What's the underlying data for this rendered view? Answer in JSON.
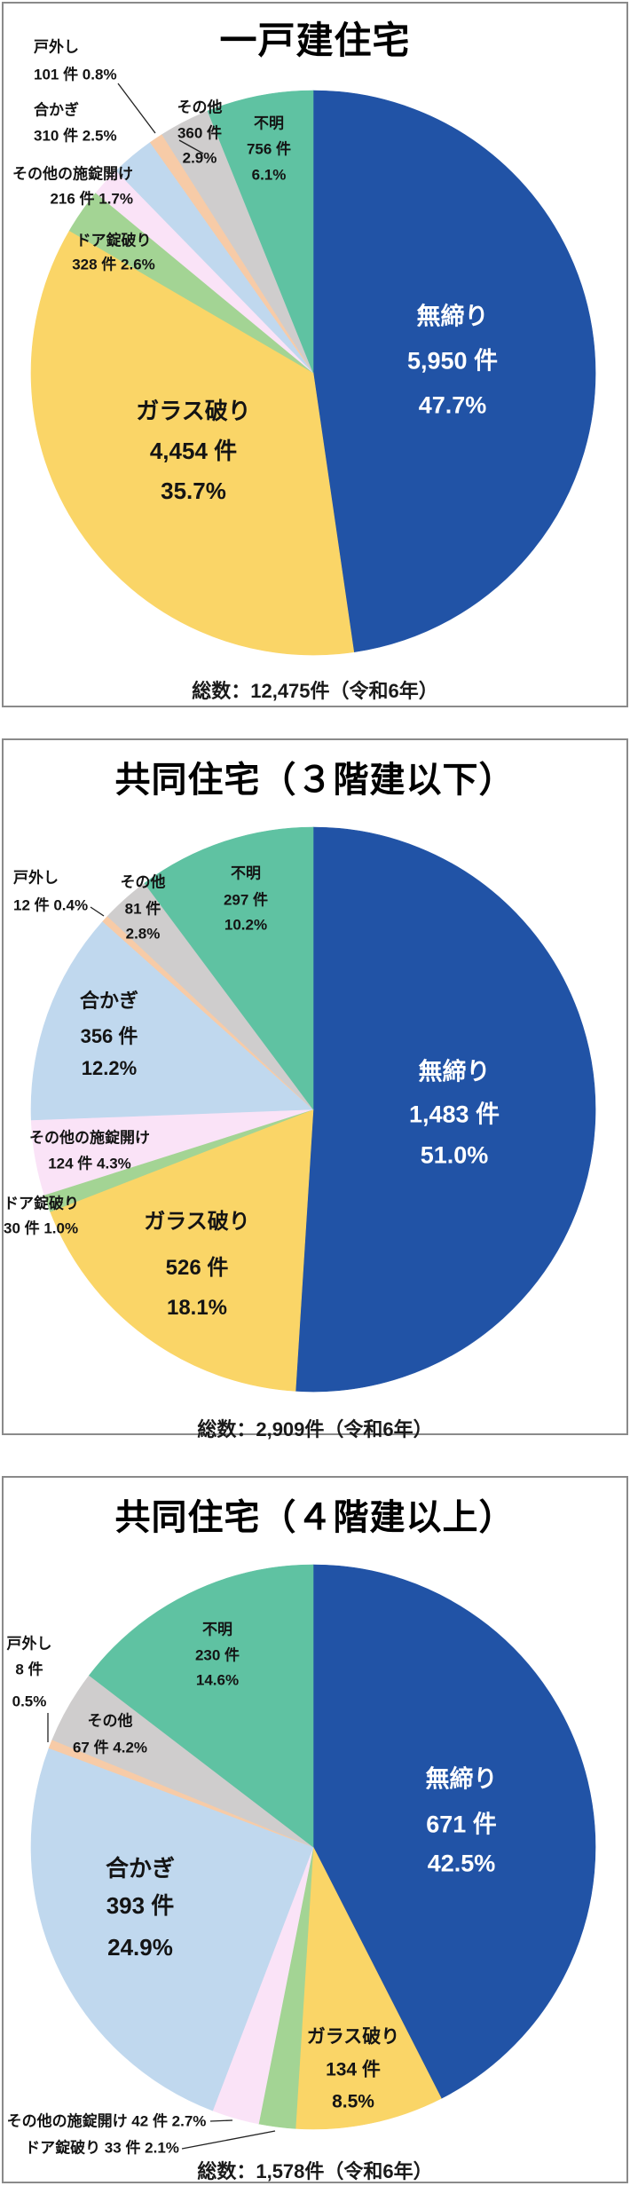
{
  "page": {
    "background": "#ffffff",
    "panel_border_color": "#8a8a8a",
    "year_note": "令和6年"
  },
  "chart_data": [
    {
      "type": "pie",
      "title": "一戸建住宅",
      "total": 12475,
      "total_label": "総数：12,475件（令和6年）",
      "start": "top",
      "direction": "clockwise",
      "slices": [
        {
          "name": "無締り",
          "count": 5950,
          "pct": 47.7,
          "color": "#2153a6",
          "label_lines": [
            "無締り",
            "5,950 件",
            "47.7%"
          ]
        },
        {
          "name": "ガラス破り",
          "count": 4454,
          "pct": 35.7,
          "color": "#fad567",
          "label_lines": [
            "ガラス破り",
            "4,454 件",
            "35.7%"
          ]
        },
        {
          "name": "ドア錠破り",
          "count": 328,
          "pct": 2.6,
          "color": "#a3d494",
          "label_lines": [
            "ドア錠破り",
            "328 件 2.6%"
          ]
        },
        {
          "name": "その他の施錠開け",
          "count": 216,
          "pct": 1.7,
          "color": "#fae3f7",
          "label_lines": [
            "その他の施錠開け",
            "216 件 1.7%"
          ]
        },
        {
          "name": "合かぎ",
          "count": 310,
          "pct": 2.5,
          "color": "#c0d8ee",
          "label_lines": [
            "合かぎ",
            "310 件 2.5%"
          ]
        },
        {
          "name": "戸外し",
          "count": 101,
          "pct": 0.8,
          "color": "#f7cba7",
          "label_lines": [
            "戸外し",
            "101 件 0.8%"
          ]
        },
        {
          "name": "その他",
          "count": 360,
          "pct": 2.9,
          "color": "#cfcdcd",
          "label_lines": [
            "その他",
            "360 件",
            "2.9%"
          ]
        },
        {
          "name": "不明",
          "count": 756,
          "pct": 6.1,
          "color": "#5fc2a2",
          "label_lines": [
            "不明",
            "756 件",
            "6.1%"
          ]
        }
      ]
    },
    {
      "type": "pie",
      "title": "共同住宅（３階建以下）",
      "total": 2909,
      "total_label": "総数：2,909件（令和6年）",
      "start": "top",
      "direction": "clockwise",
      "slices": [
        {
          "name": "無締り",
          "count": 1483,
          "pct": 51.0,
          "color": "#2153a6",
          "label_lines": [
            "無締り",
            "1,483 件",
            "51.0%"
          ]
        },
        {
          "name": "ガラス破り",
          "count": 526,
          "pct": 18.1,
          "color": "#fad567",
          "label_lines": [
            "ガラス破り",
            "526 件",
            "18.1%"
          ]
        },
        {
          "name": "ドア錠破り",
          "count": 30,
          "pct": 1.0,
          "color": "#a3d494",
          "label_lines": [
            "ドア錠破り",
            "30 件 1.0%"
          ]
        },
        {
          "name": "その他の施錠開け",
          "count": 124,
          "pct": 4.3,
          "color": "#fae3f7",
          "label_lines": [
            "その他の施錠開け",
            "124 件 4.3%"
          ]
        },
        {
          "name": "合かぎ",
          "count": 356,
          "pct": 12.2,
          "color": "#c0d8ee",
          "label_lines": [
            "合かぎ",
            "356 件",
            "12.2%"
          ]
        },
        {
          "name": "戸外し",
          "count": 12,
          "pct": 0.4,
          "color": "#f7cba7",
          "label_lines": [
            "戸外し",
            "12 件 0.4%"
          ]
        },
        {
          "name": "その他",
          "count": 81,
          "pct": 2.8,
          "color": "#cfcdcd",
          "label_lines": [
            "その他",
            "81 件",
            "2.8%"
          ]
        },
        {
          "name": "不明",
          "count": 297,
          "pct": 10.2,
          "color": "#5fc2a2",
          "label_lines": [
            "不明",
            "297 件",
            "10.2%"
          ]
        }
      ]
    },
    {
      "type": "pie",
      "title": "共同住宅（４階建以上）",
      "total": 1578,
      "total_label": "総数：1,578件（令和6年）",
      "start": "top",
      "direction": "clockwise",
      "slices": [
        {
          "name": "無締り",
          "count": 671,
          "pct": 42.5,
          "color": "#2153a6",
          "label_lines": [
            "無締り",
            "671 件",
            "42.5%"
          ]
        },
        {
          "name": "ガラス破り",
          "count": 134,
          "pct": 8.5,
          "color": "#fad567",
          "label_lines": [
            "ガラス破り",
            "134 件",
            "8.5%"
          ]
        },
        {
          "name": "ドア錠破り",
          "count": 33,
          "pct": 2.1,
          "color": "#a3d494",
          "label_lines": [
            "ドア錠破り 33 件 2.1%"
          ]
        },
        {
          "name": "その他の施錠開け",
          "count": 42,
          "pct": 2.7,
          "color": "#fae3f7",
          "label_lines": [
            "その他の施錠開け 42 件 2.7%"
          ]
        },
        {
          "name": "合かぎ",
          "count": 393,
          "pct": 24.9,
          "color": "#c0d8ee",
          "label_lines": [
            "合かぎ",
            "393 件",
            "24.9%"
          ]
        },
        {
          "name": "戸外し",
          "count": 8,
          "pct": 0.5,
          "color": "#f7cba7",
          "label_lines": [
            "戸外し",
            "8 件",
            "0.5%"
          ]
        },
        {
          "name": "その他",
          "count": 67,
          "pct": 4.2,
          "color": "#cfcdcd",
          "label_lines": [
            "その他",
            "67 件 4.2%"
          ]
        },
        {
          "name": "不明",
          "count": 230,
          "pct": 14.6,
          "color": "#5fc2a2",
          "label_lines": [
            "不明",
            "230 件",
            "14.6%"
          ]
        }
      ]
    }
  ]
}
